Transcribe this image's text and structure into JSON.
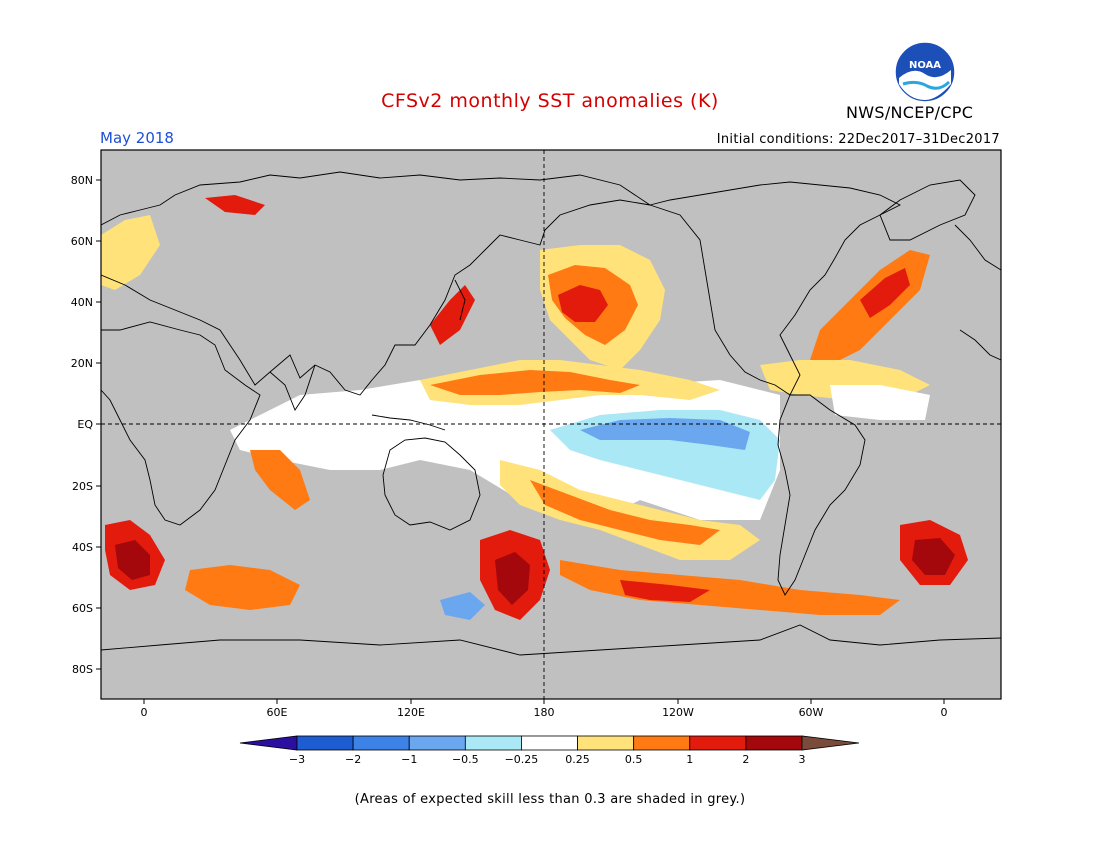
{
  "header": {
    "title": "CFSv2 monthly SST anomalies (K)",
    "month": "May 2018",
    "initial_conditions": "Initial conditions: 22Dec2017–31Dec2017",
    "agency": "NWS/NCEP/CPC",
    "logo_text": "NOAA"
  },
  "map": {
    "lat_labels": [
      "80N",
      "60N",
      "40N",
      "20N",
      "EQ",
      "20S",
      "40S",
      "60S",
      "80S"
    ],
    "lon_labels": [
      "0",
      "60E",
      "120E",
      "180",
      "120W",
      "60W",
      "0"
    ],
    "land_color": "#c0c0c0",
    "ocean_color": "#ffffff"
  },
  "colorbar": {
    "labels": [
      "−3",
      "−2",
      "−1",
      "−0.5",
      "−0.25",
      "0.25",
      "0.5",
      "1",
      "2",
      "3"
    ],
    "colors": [
      "#2b0fa0",
      "#1e5cd1",
      "#3d82e6",
      "#6aa7ee",
      "#a9e8f4",
      "#ffffff",
      "#ffe27a",
      "#ff7a12",
      "#e21b0c",
      "#a4070c",
      "#7a4a3a"
    ]
  },
  "footnote": "(Areas of expected skill less than 0.3 are shaded in grey.)"
}
